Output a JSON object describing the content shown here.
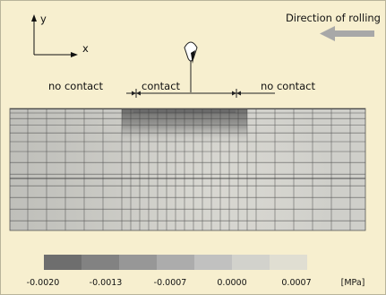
{
  "axes": {
    "x_label": "x",
    "y_label": "y"
  },
  "direction_label": "Direction of rolling",
  "zones": {
    "left": "no contact",
    "center": "contact",
    "right": "no contact"
  },
  "legend": {
    "ticks": [
      "-0.0020",
      "-0.0013",
      "-0.0007",
      "0.0000",
      "0.0007"
    ],
    "unit": "[MPa]",
    "colors": [
      "#6e6e6e",
      "#828282",
      "#979797",
      "#acacac",
      "#c1c1c0",
      "#d2d2cc",
      "#e0ded2"
    ]
  },
  "colors": {
    "background": "#f7efcf",
    "grid_line": "#3c3c3c",
    "arrow": "#a8a8a8",
    "contact_band": "#6a6a6a"
  }
}
